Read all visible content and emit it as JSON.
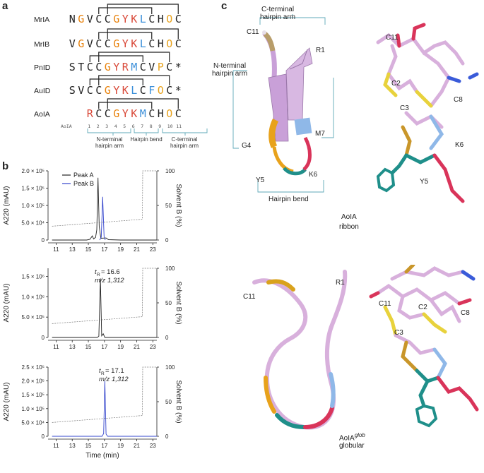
{
  "panel_a": {
    "letter": "a",
    "sequences": [
      {
        "name": "MrIA",
        "residues": [
          "N",
          "G",
          "V",
          "C",
          "C",
          "G",
          "Y",
          "K",
          "L",
          "C",
          "H",
          "O",
          "C"
        ],
        "suffix": ""
      },
      {
        "name": "MrIB",
        "residues": [
          "V",
          "G",
          "V",
          "C",
          "C",
          "G",
          "Y",
          "K",
          "L",
          "C",
          "H",
          "O",
          "C"
        ],
        "suffix": ""
      },
      {
        "name": "PnID",
        "residues": [
          "S",
          "T",
          "C",
          "C",
          "G",
          "Y",
          "R",
          "M",
          "C",
          "V",
          "P",
          "C"
        ],
        "suffix": "*"
      },
      {
        "name": "AuID",
        "residues": [
          "S",
          "V",
          "C",
          "C",
          "G",
          "Y",
          "K",
          "L",
          "C",
          "F",
          "O",
          "C"
        ],
        "suffix": "*"
      },
      {
        "name": "AoIA",
        "residues": [
          "R",
          "C",
          "C",
          "G",
          "Y",
          "K",
          "M",
          "C",
          "H",
          "O",
          "C"
        ],
        "suffix": ""
      }
    ],
    "numbering_label": "AoIA",
    "numbers": [
      "1",
      "2",
      "3",
      "4",
      "5",
      "6",
      "7",
      "8",
      "9",
      "10",
      "11"
    ],
    "regions": [
      "N-terminal\nhairpin arm",
      "Hairpin bend",
      "C-terminal\nhairpin arm"
    ],
    "colors": {
      "C": "#222222",
      "G": "#e8820c",
      "Y": "#d94a3a",
      "K": "#d94a3a",
      "R": "#d94a3a",
      "L": "#3b8fd9",
      "M": "#3b8fd9",
      "F": "#3b8fd9",
      "H": "#222222",
      "O": "#e8a21c",
      "V": "#222222",
      "P": "#e8a21c",
      "default": "#222222"
    }
  },
  "panel_b": {
    "letter": "b",
    "charts": [
      {
        "ylabel": "A220 (mAU)",
        "y2label": "Solvent B (%)",
        "yticks": [
          "0",
          "5.0 × 10⁴",
          "1.0 × 10⁵",
          "1.5 × 10⁵",
          "2.0 × 10⁵"
        ],
        "y2ticks": [
          "0",
          "50",
          "100"
        ],
        "xticks": [
          "11",
          "13",
          "15",
          "17",
          "19",
          "21",
          "23"
        ],
        "legend": [
          {
            "name": "Peak A",
            "color": "#222222"
          },
          {
            "name": "Peak B",
            "color": "#3344cc"
          }
        ],
        "annotation": null
      },
      {
        "ylabel": "A220 (mAU)",
        "y2label": "Solvent B (%)",
        "yticks": [
          "0",
          "5.0 × 10⁵",
          "1.0 × 10⁶",
          "1.5 × 10⁶"
        ],
        "y2ticks": [
          "0",
          "50",
          "100"
        ],
        "xticks": [
          "11",
          "13",
          "15",
          "17",
          "19",
          "21",
          "23"
        ],
        "legend": [],
        "annotation": {
          "line1": "t",
          "sub": "R",
          "line1_value": " = 16.6",
          "line2": "m/z 1,312"
        }
      },
      {
        "ylabel": "A220 (mAU)",
        "y2label": "Solvent B (%)",
        "yticks": [
          "0",
          "5.0 × 10⁴",
          "1.0 × 10⁵",
          "1.5 × 10⁵",
          "2.0 × 10⁵",
          "2.5 × 10⁵"
        ],
        "y2ticks": [
          "0",
          "50",
          "100"
        ],
        "xticks": [
          "11",
          "13",
          "15",
          "17",
          "19",
          "21",
          "23"
        ],
        "legend": [],
        "annotation": {
          "line1": "t",
          "sub": "R",
          "line1_value": " = 17.1",
          "line2": "m/z 1,312"
        }
      }
    ],
    "xlabel": "Time (min)"
  },
  "chart_data": [
    {
      "type": "line",
      "x_range": [
        10,
        23.5
      ],
      "ylim": [
        0,
        200000
      ],
      "y2lim": [
        0,
        100
      ],
      "series": [
        {
          "name": "Peak A",
          "color": "#222222",
          "points": [
            [
              10.5,
              0
            ],
            [
              14.8,
              0
            ],
            [
              15.2,
              2000
            ],
            [
              15.5,
              12000
            ],
            [
              15.65,
              3000
            ],
            [
              15.9,
              8000
            ],
            [
              16.05,
              30000
            ],
            [
              16.2,
              180000
            ],
            [
              16.35,
              40000
            ],
            [
              16.55,
              5000
            ],
            [
              17.2,
              6000
            ],
            [
              17.5,
              1000
            ],
            [
              19,
              0
            ],
            [
              23.5,
              0
            ]
          ]
        },
        {
          "name": "Peak B",
          "color": "#3344cc",
          "points": [
            [
              16.4,
              0
            ],
            [
              16.6,
              8000
            ],
            [
              16.78,
              125000
            ],
            [
              16.95,
              10000
            ],
            [
              17.1,
              0
            ]
          ]
        },
        {
          "name": "Solvent B",
          "color": "#777777",
          "dashed": true,
          "axis": "y2",
          "points": [
            [
              10.5,
              20
            ],
            [
              21.7,
              30
            ],
            [
              21.75,
              100
            ],
            [
              23.5,
              100
            ]
          ]
        }
      ]
    },
    {
      "type": "line",
      "x_range": [
        10,
        23.5
      ],
      "ylim": [
        0,
        1700000
      ],
      "y2lim": [
        0,
        100
      ],
      "series": [
        {
          "name": "",
          "color": "#222222",
          "points": [
            [
              10.5,
              0
            ],
            [
              16.1,
              0
            ],
            [
              16.3,
              30000
            ],
            [
              16.5,
              1450000
            ],
            [
              16.65,
              40000
            ],
            [
              16.85,
              90000
            ],
            [
              17.05,
              0
            ],
            [
              23.5,
              0
            ]
          ]
        },
        {
          "name": "Solvent B",
          "color": "#777777",
          "dashed": true,
          "axis": "y2",
          "points": [
            [
              10.5,
              20
            ],
            [
              21.7,
              30
            ],
            [
              21.75,
              100
            ],
            [
              23.5,
              100
            ]
          ]
        }
      ]
    },
    {
      "type": "line",
      "x_range": [
        10,
        23.5
      ],
      "ylim": [
        0,
        250000
      ],
      "y2lim": [
        0,
        100
      ],
      "series": [
        {
          "name": "",
          "color": "#3344cc",
          "points": [
            [
              10.5,
              0
            ],
            [
              16.7,
              0
            ],
            [
              16.9,
              10000
            ],
            [
              17.05,
              200000
            ],
            [
              17.2,
              8000
            ],
            [
              17.4,
              0
            ],
            [
              23.5,
              0
            ]
          ]
        },
        {
          "name": "Solvent B",
          "color": "#777777",
          "dashed": true,
          "axis": "y2",
          "points": [
            [
              10.5,
              20
            ],
            [
              21.7,
              30
            ],
            [
              21.75,
              100
            ],
            [
              23.5,
              100
            ]
          ]
        }
      ]
    }
  ],
  "panel_c": {
    "letter": "c",
    "ribbon": {
      "top_label": "C-terminal\nhairpin arm",
      "left_label": "N-terminal\nhairpin arm",
      "bend_label": "Hairpin bend",
      "residues": [
        "C11",
        "R1",
        "G4",
        "M7",
        "Y5",
        "K6"
      ],
      "stick_residues": [
        "C11",
        "C2",
        "C8",
        "C3",
        "K6",
        "Y5"
      ],
      "caption1": "AoIA",
      "caption2": "ribbon"
    },
    "globular": {
      "residues": [
        "C11",
        "R1"
      ],
      "stick_residues": [
        "C11",
        "C2",
        "C8",
        "C3"
      ],
      "caption1": "AoIA",
      "caption1_sup": "glob",
      "caption2": "globular"
    }
  }
}
